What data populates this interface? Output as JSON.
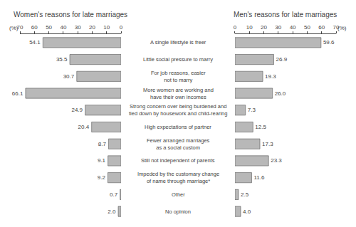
{
  "chart_data": [
    {
      "type": "bar",
      "orientation": "horizontal",
      "title": "Women's reasons for late marriages",
      "xlabel": "(%)",
      "categories": [
        "A single lifestyle is freer",
        "Little social pressure to marry",
        "For job reasons, easier\nnot to marry",
        "More women are working and\nhave their own incomes",
        "Strong concern over being burdened and\ntied down by housework and child-rearing",
        "High expectations of partner",
        "Fewer arranged marriages\nas a social custom",
        "Still not independent of parents",
        "Impeded by the customary change\nof name through marriage*",
        "Other",
        "No opinion"
      ],
      "values": [
        54.1,
        35.5,
        30.7,
        66.1,
        24.9,
        20.4,
        8.7,
        9.1,
        9.2,
        0.7,
        2.0
      ],
      "value_labels": [
        "54.1",
        "35.5",
        "30.7",
        "66.1",
        "24.9",
        "20.4",
        "8.7",
        "9.1",
        "9.2",
        "0.7",
        "2.0"
      ],
      "color": "#b8b8b8",
      "xlim": [
        70,
        0
      ],
      "xticks": [
        0,
        10,
        20,
        30,
        40,
        50,
        60,
        70
      ],
      "data_labels": true,
      "grid": false
    },
    {
      "type": "bar",
      "orientation": "horizontal",
      "title": "Men's reasons for late marriages",
      "xlabel": "(%)",
      "categories": [
        "A single lifestyle is freer",
        "Little social pressure to marry",
        "For job reasons, easier\nnot to marry",
        "More women are working and\nhave their own incomes",
        "Strong concern over being burdened and\ntied down by housework and child-rearing",
        "High expectations of partner",
        "Fewer arranged marriages\nas a social custom",
        "Still not independent of parents",
        "Impeded by the customary change\nof name through marriage*",
        "Other",
        "No opinion"
      ],
      "values": [
        59.6,
        26.9,
        19.3,
        26.0,
        7.3,
        12.5,
        17.3,
        23.3,
        11.6,
        2.5,
        4.0
      ],
      "value_labels": [
        "59.6",
        "26.9",
        "19.3",
        "26.0",
        "7.3",
        "12.5",
        "17.3",
        "23.3",
        "11.6",
        "2.5",
        "4.0"
      ],
      "color": "#b8b8b8",
      "xlim": [
        0,
        70
      ],
      "xticks": [
        0,
        10,
        20,
        30,
        40,
        50,
        60,
        70
      ],
      "data_labels": true,
      "grid": false
    }
  ]
}
